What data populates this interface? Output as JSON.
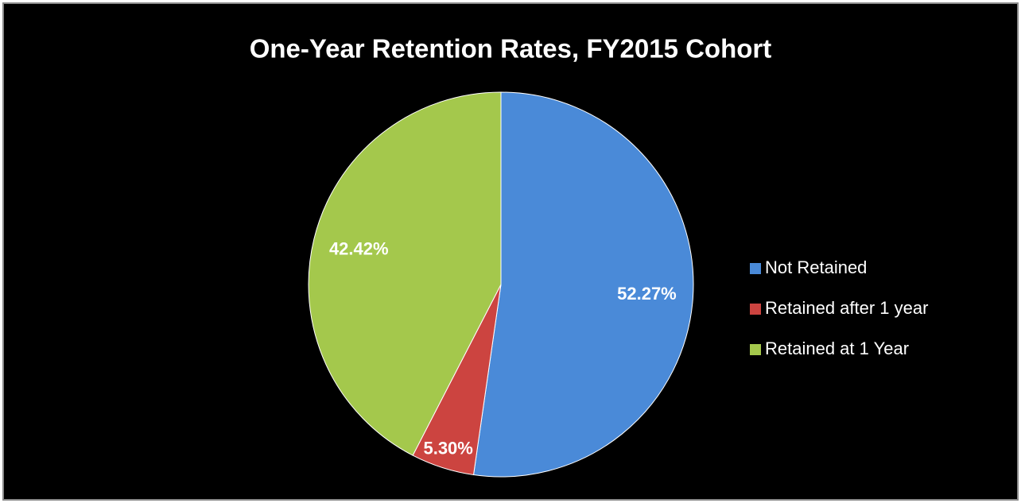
{
  "chart_data": {
    "type": "pie",
    "title": "One-Year Retention Rates, FY2015 Cohort",
    "categories": [
      "Not Retained",
      "Retained after 1 year",
      "Retained at 1 Year"
    ],
    "values": [
      52.27,
      5.3,
      42.42
    ],
    "value_labels": [
      "52.27%",
      "5.30%",
      "42.42%"
    ],
    "colors": [
      "#4a8ad8",
      "#cc4440",
      "#a4c84c"
    ],
    "legend": "right"
  }
}
